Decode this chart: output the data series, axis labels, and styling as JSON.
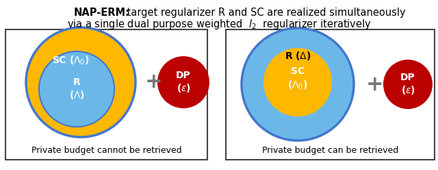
{
  "title_bold": "NAP-ERM:",
  "title_rest1": " target regularizer R and SC are realized simultaneously",
  "title_line2": "via a single dual purpose weighted  ",
  "title_l2": "$\\ell_2$",
  "title_end": "  regularizer iteratively",
  "left_caption": "Private budget cannot be retrieved",
  "right_caption": "Private budget can be retrieved",
  "color_yellow": "#FFB800",
  "color_blue": "#6BB8E8",
  "color_red": "#BB0000",
  "color_blue_outline": "#4477CC",
  "color_plus": "#777777",
  "color_box_edge": "#444444"
}
